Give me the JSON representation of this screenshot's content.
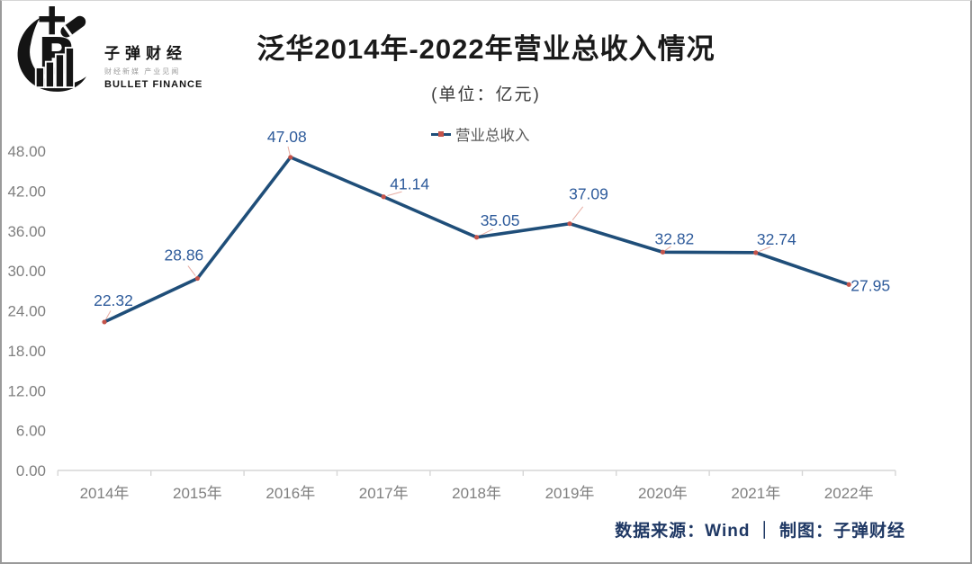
{
  "logo": {
    "brand": "子弹财经",
    "tagline": "财经新媒 产业见闻",
    "brand_en": "BULLET FINANCE"
  },
  "header": {
    "title": "泛华2014年-2022年营业总收入情况",
    "unit_label": "(单位：亿元)"
  },
  "chart_data": {
    "type": "line",
    "title": "泛华2014年-2022年营业总收入情况",
    "unit_label": "(单位：亿元)",
    "categories": [
      "2014年",
      "2015年",
      "2016年",
      "2017年",
      "2018年",
      "2019年",
      "2020年",
      "2021年",
      "2022年"
    ],
    "series": [
      {
        "name": "营业总收入",
        "values": [
          22.32,
          28.86,
          47.08,
          41.14,
          35.05,
          37.09,
          32.82,
          32.74,
          27.95
        ]
      }
    ],
    "data_labels": [
      "22.32",
      "28.86",
      "47.08",
      "41.14",
      "35.05",
      "37.09",
      "32.82",
      "32.74",
      "27.95"
    ],
    "y_tick_labels": [
      "48.00",
      "42.00",
      "36.00",
      "30.00",
      "24.00",
      "18.00",
      "12.00",
      "6.00",
      "0.00"
    ],
    "ylim": [
      0,
      48
    ],
    "xlabel": "",
    "ylabel": "",
    "grid": false,
    "legend": {
      "label": "营业总收入",
      "position": "top"
    },
    "colors": {
      "line": "#1F4E79",
      "marker": "#C4534A",
      "data_label": "#2E5B9B",
      "axis_text": "#7F7F7F",
      "footer_text": "#1F3864"
    }
  },
  "footer": {
    "credit": "数据来源：Wind ｜ 制图：子弹财经"
  }
}
